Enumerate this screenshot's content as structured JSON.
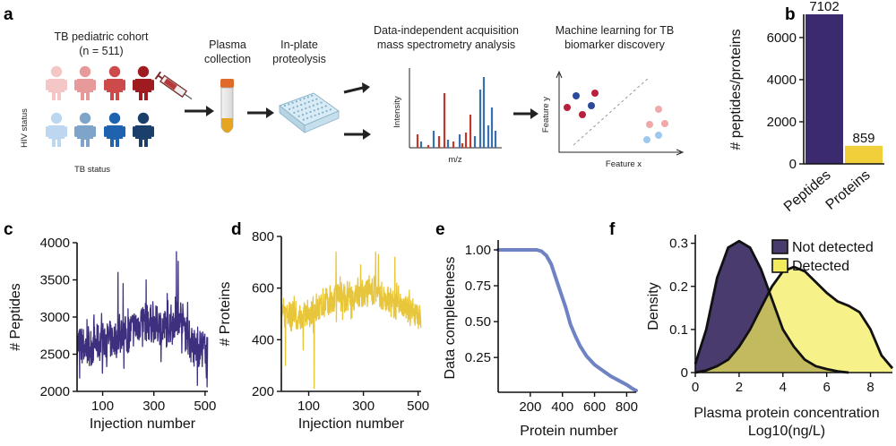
{
  "panel_a": {
    "letter": "a",
    "cohort_title": "TB pediatric cohort",
    "cohort_n": "(n = 511)",
    "hiv_label": "HIV status",
    "tb_label": "TB status",
    "step_plasma": [
      "Plasma",
      "collection"
    ],
    "step_proteolysis": [
      "In-plate",
      "proteolysis"
    ],
    "step_ms": [
      "Data-independent acquisition",
      "mass spectrometry analysis"
    ],
    "step_ml": [
      "Machine learning for TB",
      "biomarker discovery"
    ],
    "ms_ylabel": "Intensity",
    "ms_xlabel": "m/z",
    "ml_ylabel": "Feature y",
    "ml_xlabel": "Feature x",
    "figure_colors": {
      "top_row": [
        "#f4c6c6",
        "#e79a9a",
        "#cc4a4a",
        "#9e1b20"
      ],
      "bottom_row": [
        "#bcd7ef",
        "#7fa4c9",
        "#1f63b0",
        "#1b3f6b"
      ]
    }
  },
  "chart_data": [
    {
      "id": "b",
      "letter": "b",
      "type": "bar",
      "categories": [
        "Peptides",
        "Proteins"
      ],
      "values": [
        7102,
        859
      ],
      "value_labels": [
        "7102",
        "859"
      ],
      "colors": [
        "#3b2a6e",
        "#f0cf3a"
      ],
      "ylabel": "# peptides/proteins",
      "ylim": [
        0,
        7102
      ],
      "yticks": [
        0,
        2000,
        4000,
        6000
      ]
    },
    {
      "id": "c",
      "letter": "c",
      "type": "line",
      "color": "#3f2f7f",
      "xlabel": "Injection number",
      "ylabel": "# Peptides",
      "xlim": [
        0,
        511
      ],
      "ylim": [
        2000,
        4000
      ],
      "xticks": [
        100,
        300,
        500
      ],
      "yticks": [
        2000,
        2500,
        3000,
        3500,
        4000
      ],
      "n_points": 511,
      "profile": [
        [
          0,
          2620
        ],
        [
          50,
          2600
        ],
        [
          100,
          2680
        ],
        [
          150,
          2700
        ],
        [
          200,
          2780
        ],
        [
          250,
          2950
        ],
        [
          300,
          2900
        ],
        [
          350,
          2850
        ],
        [
          400,
          3050
        ],
        [
          450,
          2600
        ],
        [
          511,
          2550
        ]
      ],
      "noise": 260,
      "spikes": [
        [
          160,
          3600
        ],
        [
          270,
          3500
        ],
        [
          388,
          3880
        ],
        [
          395,
          3750
        ],
        [
          180,
          3450
        ]
      ],
      "dips": [
        [
          10,
          2180
        ],
        [
          470,
          2080
        ],
        [
          508,
          2060
        ]
      ]
    },
    {
      "id": "d",
      "letter": "d",
      "type": "line",
      "color": "#e8c63c",
      "xlabel": "Injection number",
      "ylabel": "# Proteins",
      "xlim": [
        0,
        511
      ],
      "ylim": [
        200,
        800
      ],
      "xticks": [
        100,
        300,
        500
      ],
      "yticks": [
        200,
        400,
        600,
        800
      ],
      "n_points": 511,
      "profile": [
        [
          0,
          480
        ],
        [
          100,
          500
        ],
        [
          150,
          540
        ],
        [
          200,
          560
        ],
        [
          250,
          560
        ],
        [
          300,
          580
        ],
        [
          350,
          590
        ],
        [
          400,
          540
        ],
        [
          450,
          520
        ],
        [
          511,
          490
        ]
      ],
      "noise": 55,
      "spikes": [
        [
          200,
          740
        ],
        [
          345,
          740
        ],
        [
          355,
          730
        ],
        [
          415,
          720
        ],
        [
          290,
          690
        ]
      ],
      "dips": [
        [
          15,
          300
        ],
        [
          120,
          210
        ],
        [
          80,
          360
        ]
      ]
    },
    {
      "id": "e",
      "letter": "e",
      "type": "line",
      "color": "#6f82c4",
      "xlabel": "Protein number",
      "ylabel": "Data completeness",
      "xlim": [
        0,
        859
      ],
      "ylim": [
        0,
        1.0
      ],
      "xticks": [
        200,
        400,
        600,
        800
      ],
      "yticks": [
        0.25,
        0.5,
        0.75,
        1.0
      ],
      "ytick_labels": [
        "0.25",
        "0.50",
        "0.75",
        "1.00"
      ],
      "points": [
        [
          0,
          1.0
        ],
        [
          150,
          1.0
        ],
        [
          240,
          1.0
        ],
        [
          270,
          0.99
        ],
        [
          300,
          0.96
        ],
        [
          330,
          0.9
        ],
        [
          360,
          0.8
        ],
        [
          390,
          0.7
        ],
        [
          420,
          0.6
        ],
        [
          450,
          0.48
        ],
        [
          480,
          0.4
        ],
        [
          510,
          0.33
        ],
        [
          550,
          0.26
        ],
        [
          600,
          0.2
        ],
        [
          650,
          0.16
        ],
        [
          700,
          0.12
        ],
        [
          750,
          0.09
        ],
        [
          800,
          0.06
        ],
        [
          840,
          0.03
        ],
        [
          859,
          0.02
        ]
      ]
    },
    {
      "id": "f",
      "letter": "f",
      "type": "area",
      "xlabel": "Plasma protein concentration",
      "xlabel2": "Log10(ng/L)",
      "ylabel": "Density",
      "xlim": [
        0,
        9
      ],
      "ylim": [
        0,
        0.32
      ],
      "xticks": [
        0,
        2,
        4,
        6,
        8
      ],
      "yticks": [
        0.0,
        0.1,
        0.2,
        0.3
      ],
      "ytick_labels": [
        "0",
        "0.1",
        "0.2",
        "0.3"
      ],
      "series": [
        {
          "name": "Not detected",
          "color": "#4a3b6e",
          "x": [
            0,
            0.5,
            1,
            1.5,
            2,
            2.5,
            3,
            3.5,
            4,
            4.5,
            5,
            5.5,
            6,
            6.5,
            7
          ],
          "y": [
            0.02,
            0.1,
            0.22,
            0.29,
            0.305,
            0.29,
            0.24,
            0.17,
            0.1,
            0.06,
            0.03,
            0.015,
            0.008,
            0.003,
            0.0
          ]
        },
        {
          "name": "Detected",
          "color": "#f2ec5c",
          "x": [
            0,
            0.5,
            1,
            1.5,
            2,
            2.5,
            3,
            3.5,
            4,
            4.5,
            5,
            5.5,
            6,
            6.5,
            7,
            7.5,
            8,
            8.5,
            9
          ],
          "y": [
            0.0,
            0.005,
            0.015,
            0.03,
            0.06,
            0.1,
            0.15,
            0.2,
            0.235,
            0.245,
            0.235,
            0.21,
            0.185,
            0.165,
            0.155,
            0.14,
            0.1,
            0.04,
            0.01
          ]
        }
      ],
      "legend": "top-right"
    }
  ]
}
